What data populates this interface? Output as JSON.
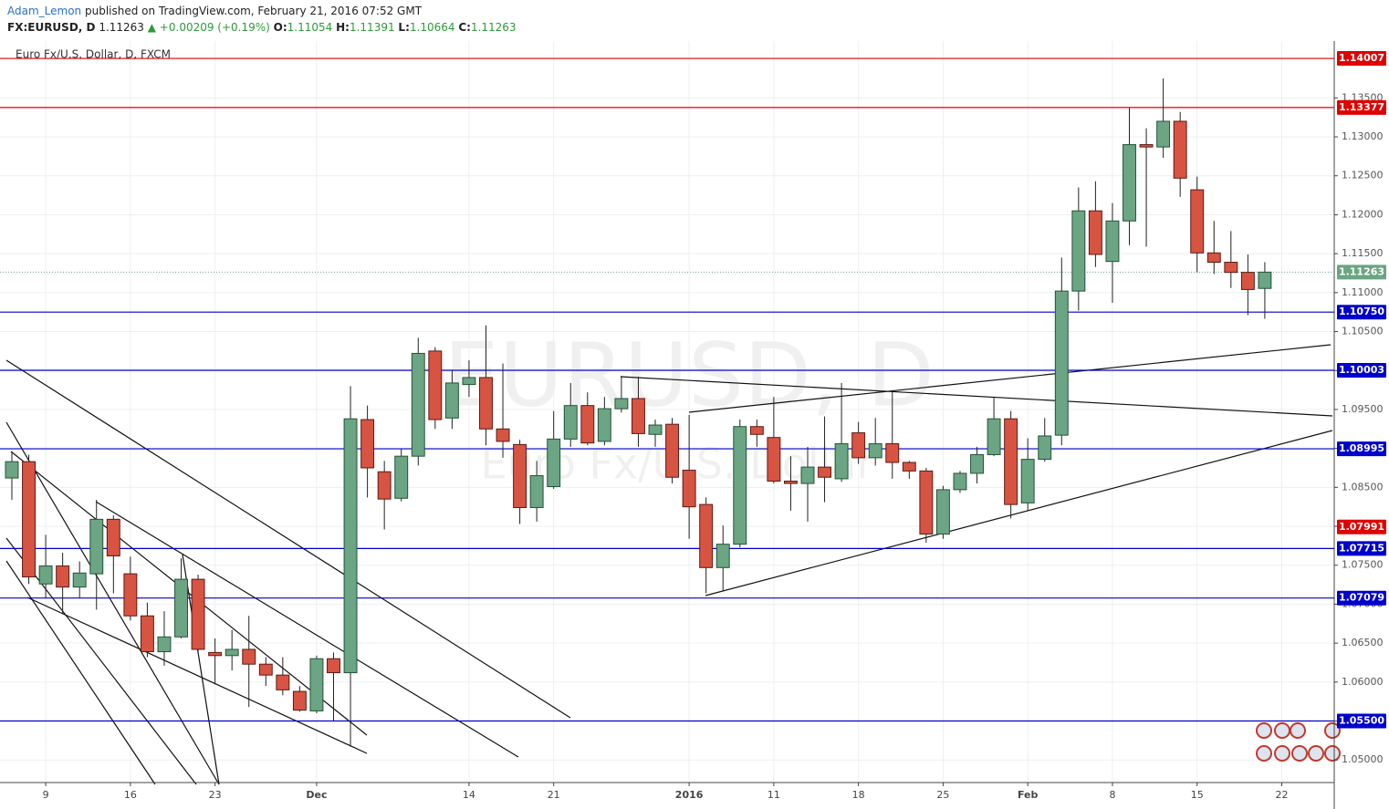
{
  "header": {
    "author": "Adam_Lemon",
    "published": "published on TradingView.com, February 21, 2016 07:52 GMT",
    "symbol": "FX:EURUSD, D",
    "last": "1.11263",
    "change": "▲ +0.00209 (+0.19%)",
    "ohlc": [
      {
        "key": "O:",
        "value": "1.11054"
      },
      {
        "key": "H:",
        "value": "1.11391"
      },
      {
        "key": "L:",
        "value": "1.10664"
      },
      {
        "key": "C:",
        "value": "1.11263"
      }
    ]
  },
  "chart_data": {
    "type": "candlestick",
    "title": "Euro Fx/U.S. Dollar, D, FXCM",
    "watermark": "EURUSD, D",
    "watermark_subtitle": "Euro Fx/U.S. Dollar",
    "up_color": "#6ba583",
    "down_color": "#d75442",
    "grid": true,
    "open": [
      1.0862,
      1.0883,
      1.0726,
      1.0749,
      1.0722,
      1.0739,
      1.0809,
      1.0739,
      1.0685,
      1.0639,
      1.0658,
      1.0732,
      1.0638,
      1.0634,
      1.0642,
      1.0623,
      1.0609,
      1.0588,
      1.0563,
      1.063,
      1.0612,
      1.0937,
      1.087,
      1.0836,
      1.089,
      1.1025,
      1.0939,
      1.0982,
      1.0991,
      1.0925,
      1.0905,
      1.0824,
      1.0851,
      1.0912,
      1.0955,
      1.0909,
      1.0951,
      1.0964,
      1.0918,
      1.0931,
      1.0872,
      1.0828,
      1.0747,
      1.0777,
      1.0928,
      1.0914,
      1.0858,
      1.0855,
      1.0876,
      1.0861,
      1.092,
      1.0888,
      1.0906,
      1.0882,
      1.0871,
      1.079,
      1.0847,
      1.0868,
      1.0892,
      1.0938,
      1.083,
      1.0886,
      1.0917,
      1.1102,
      1.1205,
      1.114,
      1.1192,
      1.129,
      1.1287,
      1.132,
      1.1232,
      1.1151,
      1.1139,
      1.1126,
      1.11054
    ],
    "high": [
      1.0896,
      1.0892,
      1.0789,
      1.0766,
      1.0755,
      1.0834,
      1.0814,
      1.0761,
      1.0702,
      1.0691,
      1.0759,
      1.0738,
      1.0656,
      1.0667,
      1.0685,
      1.0632,
      1.0632,
      1.0595,
      1.0634,
      1.0638,
      1.098,
      1.0955,
      1.0884,
      1.0899,
      1.1042,
      1.103,
      1.1001,
      1.1013,
      1.1058,
      1.1009,
      1.0911,
      1.0884,
      1.0948,
      1.0984,
      1.0972,
      1.0966,
      1.0993,
      1.0992,
      1.0937,
      1.0939,
      1.0943,
      1.0837,
      1.0801,
      1.0937,
      1.0937,
      1.0966,
      1.089,
      1.0902,
      1.0941,
      1.0984,
      1.0934,
      1.0939,
      1.0974,
      1.0884,
      1.0875,
      1.0852,
      1.0871,
      1.0902,
      1.0965,
      1.0948,
      1.0913,
      1.0939,
      1.1145,
      1.1235,
      1.1243,
      1.1215,
      1.1337,
      1.1311,
      1.1375,
      1.1332,
      1.1249,
      1.1192,
      1.1179,
      1.1149,
      1.11391
    ],
    "low": [
      1.0834,
      1.0726,
      1.0708,
      1.0688,
      1.0708,
      1.0693,
      1.0714,
      1.0679,
      1.0632,
      1.0621,
      1.0656,
      1.0639,
      1.0597,
      1.0615,
      1.0568,
      1.0595,
      1.0583,
      1.0562,
      1.056,
      1.055,
      1.0517,
      1.0837,
      1.0796,
      1.0832,
      1.0878,
      1.0925,
      1.0925,
      1.0966,
      1.0904,
      1.0888,
      1.0803,
      1.0806,
      1.0848,
      1.0902,
      1.0904,
      1.0904,
      1.0946,
      1.0902,
      1.0902,
      1.0855,
      1.0784,
      1.0714,
      1.0717,
      1.0773,
      1.0902,
      1.0855,
      1.082,
      1.0806,
      1.0831,
      1.0857,
      1.088,
      1.0878,
      1.0861,
      1.0861,
      1.0779,
      1.0784,
      1.0843,
      1.0855,
      1.089,
      1.081,
      1.082,
      1.0883,
      1.0904,
      1.1077,
      1.1133,
      1.1087,
      1.1161,
      1.1159,
      1.1273,
      1.1223,
      1.1126,
      1.1124,
      1.1106,
      1.1071,
      1.10664
    ],
    "close": [
      1.0883,
      1.0735,
      1.0749,
      1.0722,
      1.074,
      1.0809,
      1.0762,
      1.0685,
      1.0639,
      1.0658,
      1.0732,
      1.0642,
      1.0634,
      1.0642,
      1.0623,
      1.0609,
      1.059,
      1.0564,
      1.063,
      1.0612,
      1.0938,
      1.0875,
      1.0835,
      1.089,
      1.1022,
      1.0937,
      1.0984,
      1.0991,
      1.0925,
      1.0909,
      1.0824,
      1.0865,
      1.0912,
      1.0955,
      1.0907,
      1.0951,
      1.0964,
      1.0919,
      1.093,
      1.0863,
      1.0825,
      1.0747,
      1.0777,
      1.0928,
      1.0918,
      1.0858,
      1.0855,
      1.0876,
      1.0863,
      1.0906,
      1.0888,
      1.0906,
      1.0882,
      1.0871,
      1.079,
      1.0847,
      1.0868,
      1.0892,
      1.0938,
      1.0828,
      1.0886,
      1.0916,
      1.1102,
      1.1205,
      1.1149,
      1.1192,
      1.129,
      1.1287,
      1.132,
      1.1247,
      1.1151,
      1.1139,
      1.1126,
      1.1104,
      1.11263
    ],
    "xlim": [
      -0.7,
      78.1
    ],
    "xticks": [
      {
        "value": 2,
        "label": "9"
      },
      {
        "value": 7,
        "label": "16"
      },
      {
        "value": 12,
        "label": "23"
      },
      {
        "value": 18,
        "label": "Dec"
      },
      {
        "value": 27,
        "label": "14"
      },
      {
        "value": 32,
        "label": "21"
      },
      {
        "value": 40,
        "label": "2016"
      },
      {
        "value": 45,
        "label": "11"
      },
      {
        "value": 50,
        "label": "18"
      },
      {
        "value": 55,
        "label": "25"
      },
      {
        "value": 60,
        "label": "Feb"
      },
      {
        "value": 65,
        "label": "8"
      },
      {
        "value": 70,
        "label": "15"
      },
      {
        "value": 75,
        "label": "22"
      }
    ],
    "ylim": [
      1.0471,
      1.1423
    ],
    "yticks": [
      {
        "value": 1.05,
        "label": "1.05000"
      },
      {
        "value": 1.055,
        "label": "1.05500"
      },
      {
        "value": 1.06,
        "label": "1.06000"
      },
      {
        "value": 1.065,
        "label": "1.06500"
      },
      {
        "value": 1.07,
        "label": "1.07000"
      },
      {
        "value": 1.075,
        "label": "1.07500"
      },
      {
        "value": 1.08,
        "label": "1.08000"
      },
      {
        "value": 1.085,
        "label": "1.08500"
      },
      {
        "value": 1.09,
        "label": "1.09000"
      },
      {
        "value": 1.095,
        "label": "1.09500"
      },
      {
        "value": 1.1,
        "label": "1.10000"
      },
      {
        "value": 1.105,
        "label": "1.10500"
      },
      {
        "value": 1.11,
        "label": "1.11000"
      },
      {
        "value": 1.115,
        "label": "1.11500"
      },
      {
        "value": 1.12,
        "label": "1.12000"
      },
      {
        "value": 1.125,
        "label": "1.12500"
      },
      {
        "value": 1.13,
        "label": "1.13000"
      },
      {
        "value": 1.135,
        "label": "1.13500"
      }
    ],
    "levels": [
      {
        "value": 1.14007,
        "label": "1.14007",
        "color": "#e00000",
        "line": true
      },
      {
        "value": 1.13377,
        "label": "1.13377",
        "color": "#e00000",
        "line": true
      },
      {
        "value": 1.1075,
        "label": "1.10750",
        "color": "#0000cc",
        "line": true
      },
      {
        "value": 1.10003,
        "label": "1.10003",
        "color": "#0000cc",
        "line": true
      },
      {
        "value": 1.08995,
        "label": "1.08995",
        "color": "#0000cc",
        "line": true
      },
      {
        "value": 1.07991,
        "label": "1.07991",
        "color": "#e00000",
        "line": false
      },
      {
        "value": 1.07715,
        "label": "1.07715",
        "color": "#0000cc",
        "line": true
      },
      {
        "value": 1.07079,
        "label": "1.07079",
        "color": "#0000cc",
        "line": true
      },
      {
        "value": 1.055,
        "label": "1.05500",
        "color": "#0000cc",
        "line": true
      }
    ],
    "last_price": {
      "value": 1.11263,
      "label": "1.11263",
      "color": "#6ba583"
    }
  }
}
